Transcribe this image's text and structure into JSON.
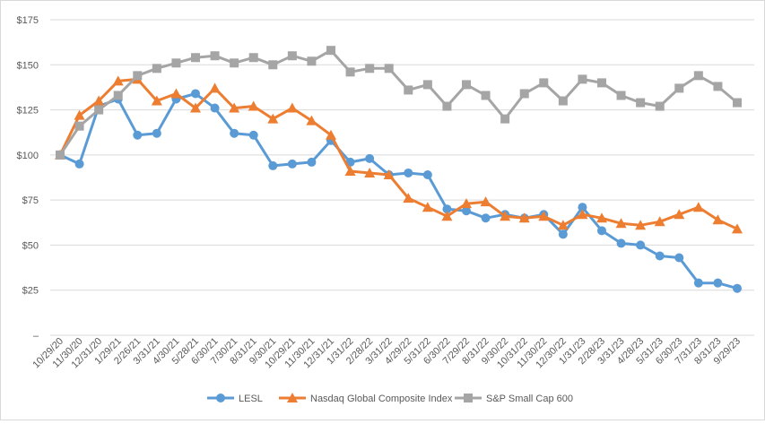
{
  "chart_data": {
    "type": "line",
    "x": [
      "10/29/20",
      "11/30/20",
      "12/31/20",
      "1/29/21",
      "2/26/21",
      "3/31/21",
      "4/30/21",
      "5/28/21",
      "6/30/21",
      "7/30/21",
      "8/31/21",
      "9/30/21",
      "10/29/21",
      "11/30/21",
      "12/31/21",
      "1/31/22",
      "2/28/22",
      "3/31/22",
      "4/29/22",
      "5/31/22",
      "6/30/22",
      "7/29/22",
      "8/31/22",
      "9/30/22",
      "10/31/22",
      "11/30/22",
      "12/30/22",
      "1/31/23",
      "2/28/23",
      "3/31/23",
      "4/28/23",
      "5/31/23",
      "6/30/23",
      "7/31/23",
      "8/31/23",
      "9/29/23"
    ],
    "y_ticks": [
      "–",
      "$25",
      "$50",
      "$75",
      "$100",
      "$125",
      "$150",
      "$175"
    ],
    "ylim": [
      0,
      175
    ],
    "grid": "horizontal",
    "legend_position": "bottom",
    "series": [
      {
        "name": "LESL",
        "color": "#5b9bd5",
        "marker": "circle",
        "values": [
          100,
          95,
          127,
          131,
          111,
          112,
          131,
          134,
          126,
          112,
          111,
          94,
          95,
          96,
          108,
          96,
          98,
          89,
          90,
          89,
          70,
          69,
          65,
          67,
          65,
          67,
          56,
          71,
          58,
          51,
          50,
          44,
          43,
          29,
          29,
          26
        ]
      },
      {
        "name": "Nasdaq Global Composite Index",
        "color": "#ed7d31",
        "marker": "triangle",
        "values": [
          100,
          122,
          130,
          141,
          142,
          130,
          134,
          126,
          137,
          126,
          127,
          120,
          126,
          119,
          111,
          91,
          90,
          89,
          76,
          71,
          66,
          73,
          74,
          66,
          65,
          66,
          61,
          67,
          65,
          62,
          61,
          63,
          67,
          71,
          64,
          59
        ]
      },
      {
        "name": "S&P Small Cap 600",
        "color": "#a5a5a5",
        "marker": "square",
        "values": [
          100,
          116,
          125,
          133,
          144,
          148,
          151,
          154,
          155,
          151,
          154,
          150,
          155,
          152,
          158,
          146,
          148,
          148,
          136,
          139,
          127,
          139,
          133,
          120,
          134,
          140,
          130,
          142,
          140,
          133,
          129,
          127,
          137,
          144,
          138,
          129
        ]
      }
    ]
  }
}
